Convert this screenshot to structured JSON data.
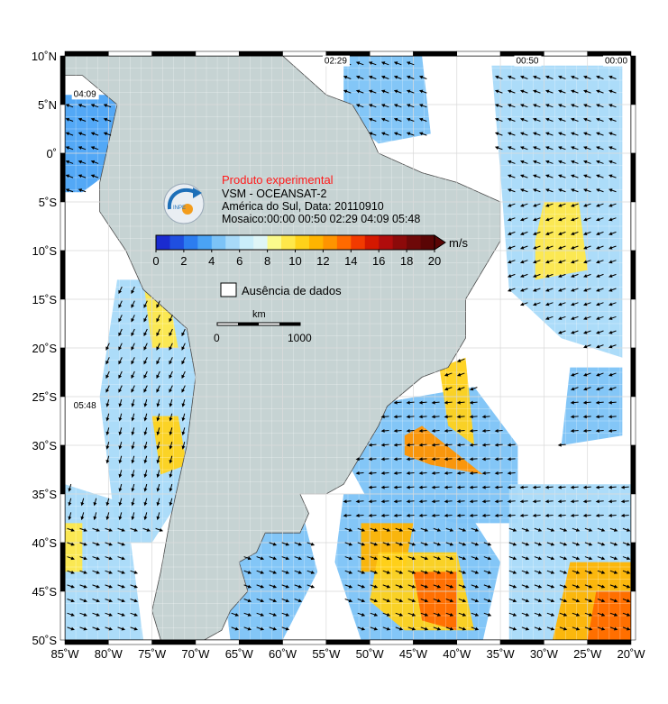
{
  "map": {
    "lon_range": [
      -85,
      -20
    ],
    "lat_range": [
      -50,
      10
    ],
    "projection": "equirectangular",
    "land_color": "#c6d3d3",
    "ocean_nodata_color": "#ffffff",
    "grid": true
  },
  "header": {
    "product_label": "Produto experimental",
    "satellite_line": "VSM - OCEANSAT-2",
    "region_line": "América do Sul, Data: 20110910",
    "mosaic_line": "Mosaico:00:00 00:50 02:29 04:09 05:48",
    "logo_text": "INPE"
  },
  "pass_times": [
    {
      "text": "02:29",
      "lon": -55.2,
      "lat": 9.2
    },
    {
      "text": "00:50",
      "lon": -33.2,
      "lat": 9.2
    },
    {
      "text": "00:00",
      "lon": -23.0,
      "lat": 9.2
    },
    {
      "text": "04:09",
      "lon": -84.0,
      "lat": 5.8
    },
    {
      "text": "05:48",
      "lon": -84.0,
      "lat": -26.2
    }
  ],
  "axes": {
    "lon_ticks": [
      "85˚W",
      "80˚W",
      "75˚W",
      "70˚W",
      "65˚W",
      "60˚W",
      "55˚W",
      "50˚W",
      "45˚W",
      "40˚W",
      "35˚W",
      "30˚W",
      "25˚W",
      "20˚W"
    ],
    "lat_ticks": [
      "10˚N",
      "5˚N",
      "0˚",
      "5˚S",
      "10˚S",
      "15˚S",
      "20˚S",
      "25˚S",
      "30˚S",
      "35˚S",
      "40˚S",
      "45˚S",
      "50˚S"
    ]
  },
  "colorbar": {
    "unit": "m/s",
    "labels": [
      "0",
      "2",
      "4",
      "6",
      "8",
      "10",
      "12",
      "14",
      "16",
      "18",
      "20"
    ],
    "min": 0,
    "max": 20,
    "colors": [
      "#1a2bd0",
      "#1f4fe0",
      "#2c7df0",
      "#4aa3f5",
      "#7cc3f7",
      "#a8daf9",
      "#c9eefa",
      "#dff6f7",
      "#fafa8c",
      "#ffe84a",
      "#ffd21a",
      "#ffb400",
      "#ff9400",
      "#ff6a00",
      "#f23a00",
      "#d41800",
      "#b00c0c",
      "#8c0a0a",
      "#6e0808",
      "#5a0505"
    ]
  },
  "nodata_legend": {
    "label": "Ausência de dados"
  },
  "scale_bar": {
    "unit": "km",
    "start": "0",
    "end": "1000"
  }
}
